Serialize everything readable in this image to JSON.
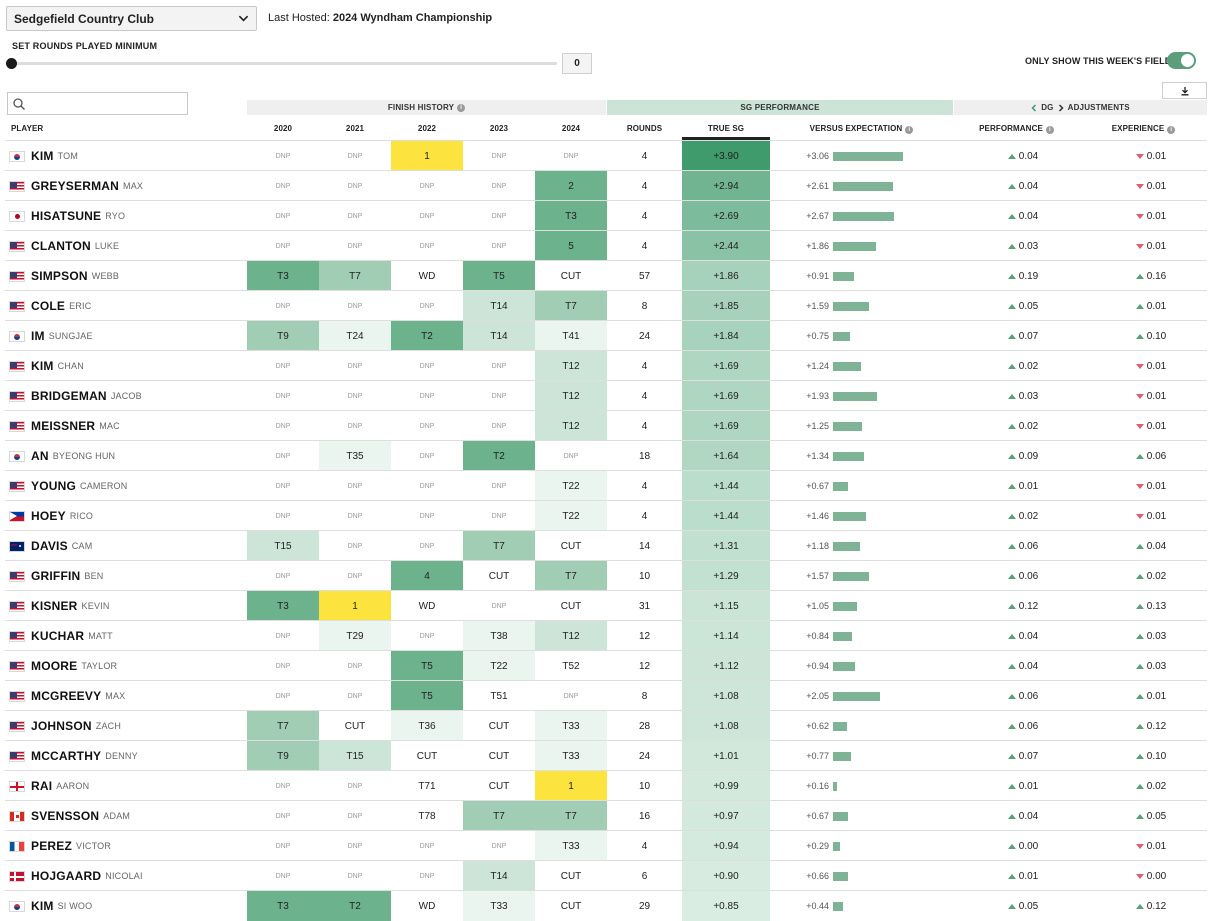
{
  "controls": {
    "course": "Sedgefield Country Club",
    "last_hosted_label": "Last Hosted:",
    "last_hosted_value": "2024 Wyndham Championship",
    "rounds_label": "SET ROUNDS PLAYED MINIMUM",
    "rounds_min": "0",
    "field_toggle_label": "ONLY SHOW THIS WEEK'S FIELD",
    "field_toggle_on": true,
    "search_placeholder": ""
  },
  "groups": {
    "finish": "FINISH HISTORY",
    "sg": "SG PERFORMANCE",
    "dg_prefix": "DG",
    "dg_suffix": "ADJUSTMENTS"
  },
  "columns": {
    "player": "PLAYER",
    "y2020": "2020",
    "y2021": "2021",
    "y2022": "2022",
    "y2023": "2023",
    "y2024": "2024",
    "rounds": "ROUNDS",
    "true_sg": "TRUE SG",
    "vs_exp": "VERSUS EXPECTATION",
    "performance": "PERFORMANCE",
    "experience": "EXPERIENCE"
  },
  "colors": {
    "win": "#fde33d",
    "top5": "#6cb28d",
    "top10": "#a1cdb5",
    "top25": "#cde5d9",
    "top50": "#ebf5ef",
    "sg_max": "#3f9a6c",
    "up": "#5aa07a",
    "down": "#e05c6e",
    "bar": "#7fb396"
  },
  "players": [
    {
      "last": "KIM",
      "first": "TOM",
      "flag": "kr",
      "finishes": [
        "DNP",
        "DNP",
        "1",
        "DNP",
        "DNP"
      ],
      "rounds": "4",
      "true_sg": "+3.90",
      "sg": 3.9,
      "vs": "+3.06",
      "vsv": 3.06,
      "perf": "0.04",
      "perf_dir": "up",
      "exp": "0.01",
      "exp_dir": "down"
    },
    {
      "last": "GREYSERMAN",
      "first": "MAX",
      "flag": "us",
      "finishes": [
        "DNP",
        "DNP",
        "DNP",
        "DNP",
        "2"
      ],
      "rounds": "4",
      "true_sg": "+2.94",
      "sg": 2.94,
      "vs": "+2.61",
      "vsv": 2.61,
      "perf": "0.04",
      "perf_dir": "up",
      "exp": "0.01",
      "exp_dir": "down"
    },
    {
      "last": "HISATSUNE",
      "first": "RYO",
      "flag": "jp",
      "finishes": [
        "DNP",
        "DNP",
        "DNP",
        "DNP",
        "T3"
      ],
      "rounds": "4",
      "true_sg": "+2.69",
      "sg": 2.69,
      "vs": "+2.67",
      "vsv": 2.67,
      "perf": "0.04",
      "perf_dir": "up",
      "exp": "0.01",
      "exp_dir": "down"
    },
    {
      "last": "CLANTON",
      "first": "LUKE",
      "flag": "us",
      "finishes": [
        "DNP",
        "DNP",
        "DNP",
        "DNP",
        "5"
      ],
      "rounds": "4",
      "true_sg": "+2.44",
      "sg": 2.44,
      "vs": "+1.86",
      "vsv": 1.86,
      "perf": "0.03",
      "perf_dir": "up",
      "exp": "0.01",
      "exp_dir": "down"
    },
    {
      "last": "SIMPSON",
      "first": "WEBB",
      "flag": "us",
      "finishes": [
        "T3",
        "T7",
        "WD",
        "T5",
        "CUT"
      ],
      "rounds": "57",
      "true_sg": "+1.86",
      "sg": 1.86,
      "vs": "+0.91",
      "vsv": 0.91,
      "perf": "0.19",
      "perf_dir": "up",
      "exp": "0.16",
      "exp_dir": "up"
    },
    {
      "last": "COLE",
      "first": "ERIC",
      "flag": "us",
      "finishes": [
        "DNP",
        "DNP",
        "DNP",
        "T14",
        "T7"
      ],
      "rounds": "8",
      "true_sg": "+1.85",
      "sg": 1.85,
      "vs": "+1.59",
      "vsv": 1.59,
      "perf": "0.05",
      "perf_dir": "up",
      "exp": "0.01",
      "exp_dir": "up"
    },
    {
      "last": "IM",
      "first": "SUNGJAE",
      "flag": "kr",
      "finishes": [
        "T9",
        "T24",
        "T2",
        "T14",
        "T41"
      ],
      "rounds": "24",
      "true_sg": "+1.84",
      "sg": 1.84,
      "vs": "+0.75",
      "vsv": 0.75,
      "perf": "0.07",
      "perf_dir": "up",
      "exp": "0.10",
      "exp_dir": "up"
    },
    {
      "last": "KIM",
      "first": "CHAN",
      "flag": "us",
      "finishes": [
        "DNP",
        "DNP",
        "DNP",
        "DNP",
        "T12"
      ],
      "rounds": "4",
      "true_sg": "+1.69",
      "sg": 1.69,
      "vs": "+1.24",
      "vsv": 1.24,
      "perf": "0.02",
      "perf_dir": "up",
      "exp": "0.01",
      "exp_dir": "down"
    },
    {
      "last": "BRIDGEMAN",
      "first": "JACOB",
      "flag": "us",
      "finishes": [
        "DNP",
        "DNP",
        "DNP",
        "DNP",
        "T12"
      ],
      "rounds": "4",
      "true_sg": "+1.69",
      "sg": 1.69,
      "vs": "+1.93",
      "vsv": 1.93,
      "perf": "0.03",
      "perf_dir": "up",
      "exp": "0.01",
      "exp_dir": "down"
    },
    {
      "last": "MEISSNER",
      "first": "MAC",
      "flag": "us",
      "finishes": [
        "DNP",
        "DNP",
        "DNP",
        "DNP",
        "T12"
      ],
      "rounds": "4",
      "true_sg": "+1.69",
      "sg": 1.69,
      "vs": "+1.25",
      "vsv": 1.25,
      "perf": "0.02",
      "perf_dir": "up",
      "exp": "0.01",
      "exp_dir": "down"
    },
    {
      "last": "AN",
      "first": "BYEONG HUN",
      "flag": "kr",
      "finishes": [
        "DNP",
        "T35",
        "DNP",
        "T2",
        "DNP"
      ],
      "rounds": "18",
      "true_sg": "+1.64",
      "sg": 1.64,
      "vs": "+1.34",
      "vsv": 1.34,
      "perf": "0.09",
      "perf_dir": "up",
      "exp": "0.06",
      "exp_dir": "up"
    },
    {
      "last": "YOUNG",
      "first": "CAMERON",
      "flag": "us",
      "finishes": [
        "DNP",
        "DNP",
        "DNP",
        "DNP",
        "T22"
      ],
      "rounds": "4",
      "true_sg": "+1.44",
      "sg": 1.44,
      "vs": "+0.67",
      "vsv": 0.67,
      "perf": "0.01",
      "perf_dir": "up",
      "exp": "0.01",
      "exp_dir": "down"
    },
    {
      "last": "HOEY",
      "first": "RICO",
      "flag": "ph",
      "finishes": [
        "DNP",
        "DNP",
        "DNP",
        "DNP",
        "T22"
      ],
      "rounds": "4",
      "true_sg": "+1.44",
      "sg": 1.44,
      "vs": "+1.46",
      "vsv": 1.46,
      "perf": "0.02",
      "perf_dir": "up",
      "exp": "0.01",
      "exp_dir": "down"
    },
    {
      "last": "DAVIS",
      "first": "CAM",
      "flag": "au",
      "finishes": [
        "T15",
        "DNP",
        "DNP",
        "T7",
        "CUT"
      ],
      "rounds": "14",
      "true_sg": "+1.31",
      "sg": 1.31,
      "vs": "+1.18",
      "vsv": 1.18,
      "perf": "0.06",
      "perf_dir": "up",
      "exp": "0.04",
      "exp_dir": "up"
    },
    {
      "last": "GRIFFIN",
      "first": "BEN",
      "flag": "us",
      "finishes": [
        "DNP",
        "DNP",
        "4",
        "CUT",
        "T7"
      ],
      "rounds": "10",
      "true_sg": "+1.29",
      "sg": 1.29,
      "vs": "+1.57",
      "vsv": 1.57,
      "perf": "0.06",
      "perf_dir": "up",
      "exp": "0.02",
      "exp_dir": "up"
    },
    {
      "last": "KISNER",
      "first": "KEVIN",
      "flag": "us",
      "finishes": [
        "T3",
        "1",
        "WD",
        "DNP",
        "CUT"
      ],
      "rounds": "31",
      "true_sg": "+1.15",
      "sg": 1.15,
      "vs": "+1.05",
      "vsv": 1.05,
      "perf": "0.12",
      "perf_dir": "up",
      "exp": "0.13",
      "exp_dir": "up"
    },
    {
      "last": "KUCHAR",
      "first": "MATT",
      "flag": "us",
      "finishes": [
        "DNP",
        "T29",
        "DNP",
        "T38",
        "T12"
      ],
      "rounds": "12",
      "true_sg": "+1.14",
      "sg": 1.14,
      "vs": "+0.84",
      "vsv": 0.84,
      "perf": "0.04",
      "perf_dir": "up",
      "exp": "0.03",
      "exp_dir": "up"
    },
    {
      "last": "MOORE",
      "first": "TAYLOR",
      "flag": "us",
      "finishes": [
        "DNP",
        "DNP",
        "T5",
        "T22",
        "T52"
      ],
      "rounds": "12",
      "true_sg": "+1.12",
      "sg": 1.12,
      "vs": "+0.94",
      "vsv": 0.94,
      "perf": "0.04",
      "perf_dir": "up",
      "exp": "0.03",
      "exp_dir": "up"
    },
    {
      "last": "MCGREEVY",
      "first": "MAX",
      "flag": "us",
      "finishes": [
        "DNP",
        "DNP",
        "T5",
        "T51",
        "DNP"
      ],
      "rounds": "8",
      "true_sg": "+1.08",
      "sg": 1.08,
      "vs": "+2.05",
      "vsv": 2.05,
      "perf": "0.06",
      "perf_dir": "up",
      "exp": "0.01",
      "exp_dir": "up"
    },
    {
      "last": "JOHNSON",
      "first": "ZACH",
      "flag": "us",
      "finishes": [
        "T7",
        "CUT",
        "T36",
        "CUT",
        "T33"
      ],
      "rounds": "28",
      "true_sg": "+1.08",
      "sg": 1.08,
      "vs": "+0.62",
      "vsv": 0.62,
      "perf": "0.06",
      "perf_dir": "up",
      "exp": "0.12",
      "exp_dir": "up"
    },
    {
      "last": "MCCARTHY",
      "first": "DENNY",
      "flag": "us",
      "finishes": [
        "T9",
        "T15",
        "CUT",
        "CUT",
        "T33"
      ],
      "rounds": "24",
      "true_sg": "+1.01",
      "sg": 1.01,
      "vs": "+0.77",
      "vsv": 0.77,
      "perf": "0.07",
      "perf_dir": "up",
      "exp": "0.10",
      "exp_dir": "up"
    },
    {
      "last": "RAI",
      "first": "AARON",
      "flag": "en",
      "finishes": [
        "DNP",
        "DNP",
        "T71",
        "CUT",
        "1"
      ],
      "rounds": "10",
      "true_sg": "+0.99",
      "sg": 0.99,
      "vs": "+0.16",
      "vsv": 0.16,
      "perf": "0.01",
      "perf_dir": "up",
      "exp": "0.02",
      "exp_dir": "up"
    },
    {
      "last": "SVENSSON",
      "first": "ADAM",
      "flag": "ca",
      "finishes": [
        "DNP",
        "DNP",
        "T78",
        "T7",
        "T7"
      ],
      "rounds": "16",
      "true_sg": "+0.97",
      "sg": 0.97,
      "vs": "+0.67",
      "vsv": 0.67,
      "perf": "0.04",
      "perf_dir": "up",
      "exp": "0.05",
      "exp_dir": "up"
    },
    {
      "last": "PEREZ",
      "first": "VICTOR",
      "flag": "fr",
      "finishes": [
        "DNP",
        "DNP",
        "DNP",
        "DNP",
        "T33"
      ],
      "rounds": "4",
      "true_sg": "+0.94",
      "sg": 0.94,
      "vs": "+0.29",
      "vsv": 0.29,
      "perf": "0.00",
      "perf_dir": "up",
      "exp": "0.01",
      "exp_dir": "down"
    },
    {
      "last": "HOJGAARD",
      "first": "NICOLAI",
      "flag": "dk",
      "finishes": [
        "DNP",
        "DNP",
        "DNP",
        "T14",
        "CUT"
      ],
      "rounds": "6",
      "true_sg": "+0.90",
      "sg": 0.9,
      "vs": "+0.66",
      "vsv": 0.66,
      "perf": "0.01",
      "perf_dir": "up",
      "exp": "0.00",
      "exp_dir": "down"
    },
    {
      "last": "KIM",
      "first": "SI WOO",
      "flag": "kr",
      "finishes": [
        "T3",
        "T2",
        "WD",
        "T33",
        "CUT"
      ],
      "rounds": "29",
      "true_sg": "+0.85",
      "sg": 0.85,
      "vs": "+0.44",
      "vsv": 0.44,
      "perf": "0.05",
      "perf_dir": "up",
      "exp": "0.12",
      "exp_dir": "up"
    }
  ]
}
